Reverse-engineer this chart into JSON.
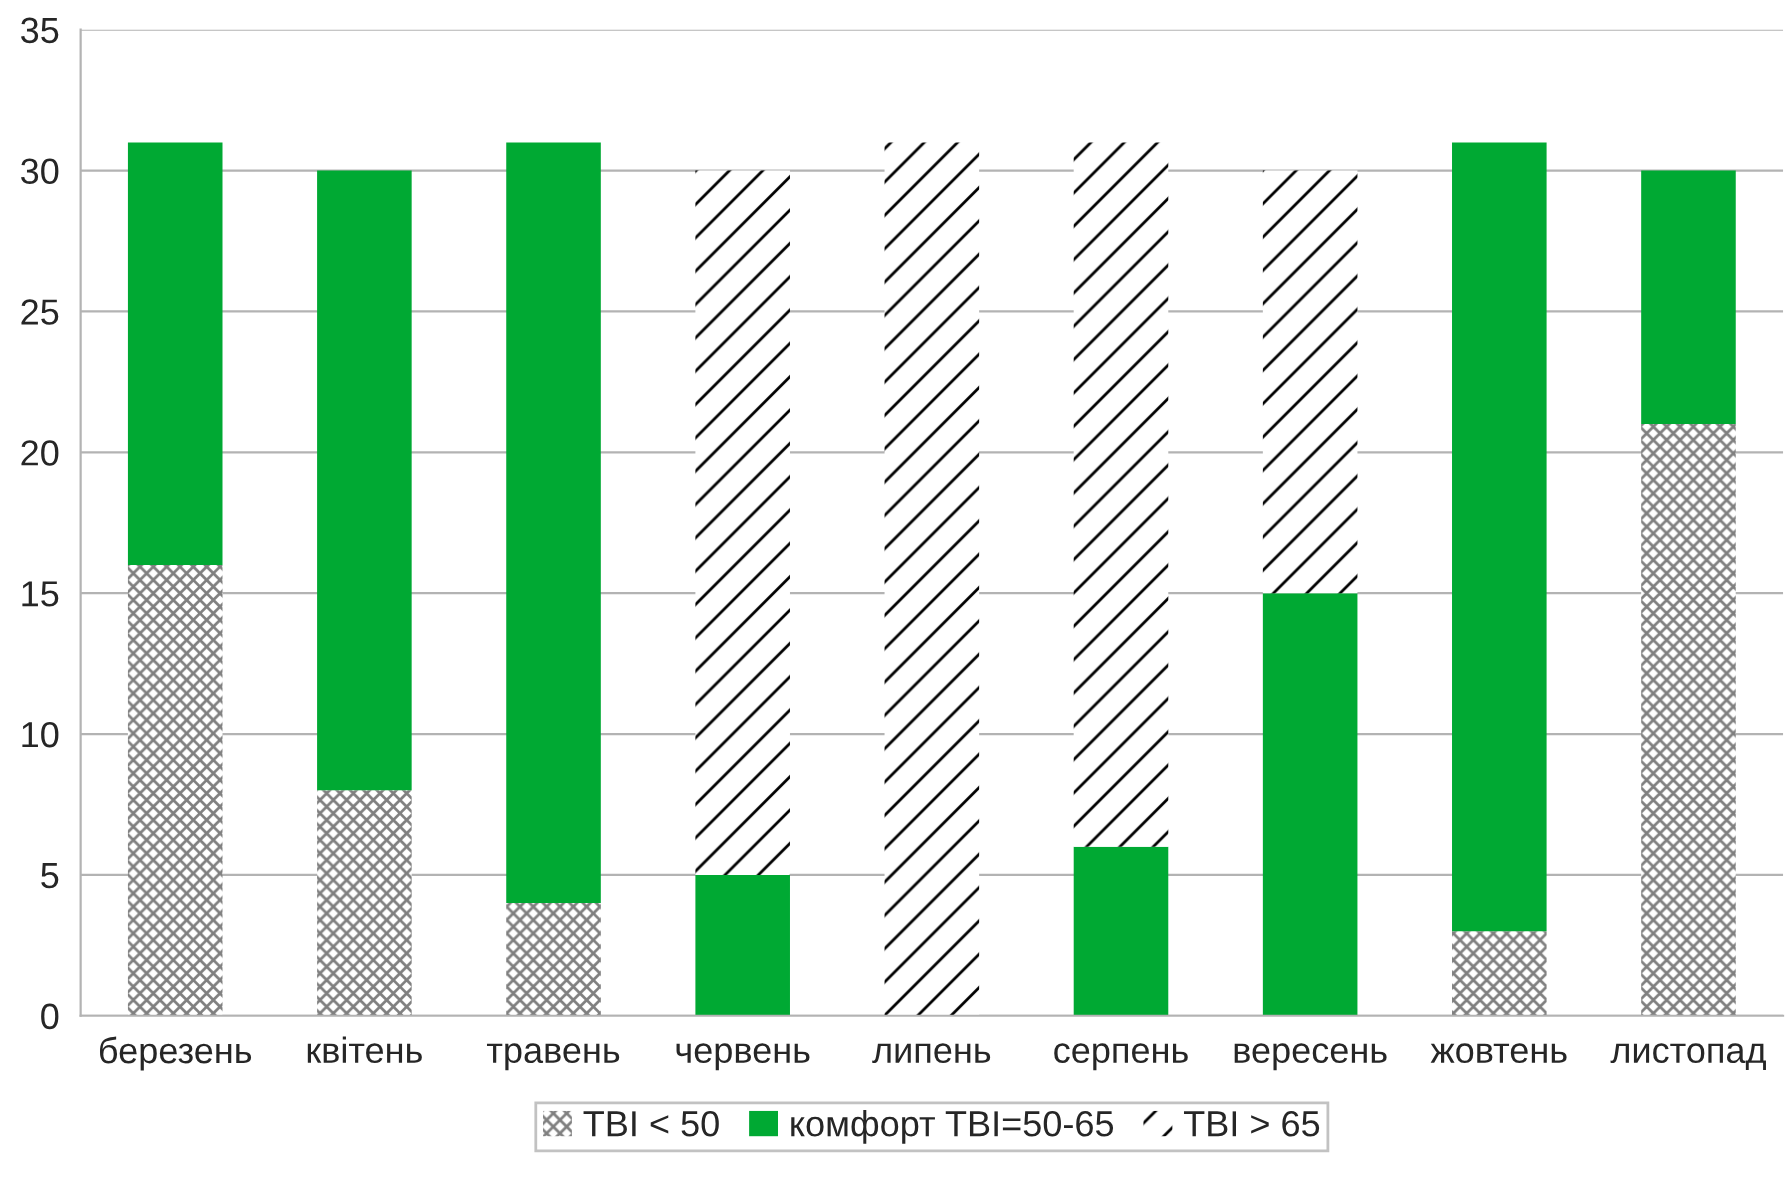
{
  "chart_data": {
    "type": "bar",
    "stacked": true,
    "categories": [
      "березень",
      "квітень",
      "травень",
      "червень",
      "липень",
      "серпень",
      "вересень",
      "жовтень",
      "листопад"
    ],
    "series": [
      {
        "name": "TBI < 50",
        "color": "#808080",
        "values": [
          16,
          8,
          4,
          0,
          0,
          0,
          0,
          3,
          21
        ]
      },
      {
        "name": "комфорт TBI=50-65",
        "color": "#00a933",
        "values": [
          15,
          22,
          27,
          5,
          0,
          6,
          15,
          28,
          9
        ]
      },
      {
        "name": "TBI > 65",
        "color": "#000000",
        "values": [
          0,
          0,
          0,
          25,
          31,
          25,
          15,
          0,
          0
        ]
      }
    ],
    "ylim": [
      0,
      35
    ],
    "yticks": [
      0,
      5,
      10,
      15,
      20,
      25,
      30,
      35
    ],
    "grid": "y",
    "legend": "bottom"
  }
}
